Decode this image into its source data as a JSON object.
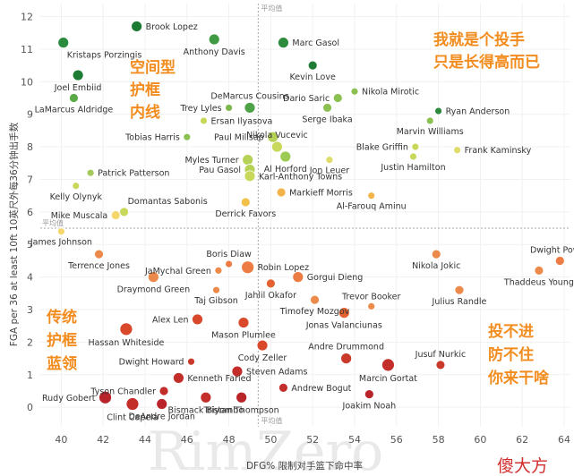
{
  "chart_data": {
    "type": "scatter",
    "xlabel": "DFG% 限制对手篮下命中率",
    "ylabel": "FGA per 36 at least 10ft  10英尺外每36分钟出手数",
    "xlim": [
      39,
      64.3
    ],
    "ylim": [
      -0.6,
      12.4
    ],
    "x_ticks": [
      40,
      42,
      44,
      46,
      48,
      50,
      52,
      54,
      56,
      58,
      60,
      62,
      64
    ],
    "y_ticks": [
      0,
      1,
      2,
      3,
      4,
      5,
      6,
      7,
      8,
      9,
      10,
      11,
      12
    ],
    "average": {
      "x": 49.4,
      "y": 5.5,
      "x_label": "平均值",
      "y_label": "平均值"
    },
    "points": [
      {
        "name": "Brook Lopez",
        "x": 43.6,
        "y": 11.7,
        "color": "#1e7b34",
        "r": 6,
        "anchor": "end-right"
      },
      {
        "name": "Kristaps Porzingis",
        "x": 40.1,
        "y": 11.2,
        "color": "#2a8a3e",
        "r": 6,
        "anchor": "below-right"
      },
      {
        "name": "Anthony Davis",
        "x": 47.3,
        "y": 11.3,
        "color": "#3f9a44",
        "r": 6,
        "anchor": "below"
      },
      {
        "name": "Marc Gasol",
        "x": 50.6,
        "y": 11.2,
        "color": "#2e8b3e",
        "r": 6,
        "anchor": "right"
      },
      {
        "name": "Kevin Love",
        "x": 52.0,
        "y": 10.5,
        "color": "#1e7b34",
        "r": 5,
        "anchor": "below"
      },
      {
        "name": "Joel Embiid",
        "x": 40.8,
        "y": 10.2,
        "color": "#1e7b34",
        "r": 6,
        "anchor": "below"
      },
      {
        "name": "LaMarcus Aldridge",
        "x": 40.6,
        "y": 9.5,
        "color": "#5aaa48",
        "r": 5,
        "anchor": "below"
      },
      {
        "name": "DeMarcus Cousins",
        "x": 49.0,
        "y": 9.2,
        "color": "#4ea346",
        "r": 6,
        "anchor": "above"
      },
      {
        "name": "Trey Lyles",
        "x": 48.0,
        "y": 9.2,
        "color": "#7db84f",
        "r": 4,
        "anchor": "left"
      },
      {
        "name": "Ersan Ilyasova",
        "x": 46.8,
        "y": 8.8,
        "color": "#c8d85a",
        "r": 4,
        "anchor": "right"
      },
      {
        "name": "Dario Saric",
        "x": 53.2,
        "y": 9.5,
        "color": "#8cc152",
        "r": 5,
        "anchor": "left"
      },
      {
        "name": "Nikola Mirotic",
        "x": 54.0,
        "y": 9.7,
        "color": "#8cc152",
        "r": 4,
        "anchor": "right"
      },
      {
        "name": "Serge Ibaka",
        "x": 52.7,
        "y": 9.2,
        "color": "#8cc152",
        "r": 5,
        "anchor": "below"
      },
      {
        "name": "Ryan Anderson",
        "x": 58.0,
        "y": 9.1,
        "color": "#2e8b3e",
        "r": 4,
        "anchor": "right"
      },
      {
        "name": "Marvin Williams",
        "x": 57.6,
        "y": 8.8,
        "color": "#8cc152",
        "r": 4,
        "anchor": "below"
      },
      {
        "name": "Tobias Harris",
        "x": 46.0,
        "y": 8.3,
        "color": "#8cc152",
        "r": 4,
        "anchor": "left"
      },
      {
        "name": "Paul Millsap",
        "x": 50.1,
        "y": 8.3,
        "color": "#b5d257",
        "r": 6,
        "anchor": "left"
      },
      {
        "name": "Nikola Vucevic",
        "x": 50.3,
        "y": 8.0,
        "color": "#c8d85a",
        "r": 6,
        "anchor": "above"
      },
      {
        "name": "Blake Griffin",
        "x": 56.9,
        "y": 8.0,
        "color": "#c8d85a",
        "r": 4,
        "anchor": "left"
      },
      {
        "name": "Frank Kaminsky",
        "x": 58.9,
        "y": 7.9,
        "color": "#e0dd6c",
        "r": 4,
        "anchor": "right"
      },
      {
        "name": "Myles Turner",
        "x": 48.9,
        "y": 7.6,
        "color": "#b5d257",
        "r": 6,
        "anchor": "left"
      },
      {
        "name": "Al Horford",
        "x": 50.7,
        "y": 7.7,
        "color": "#9ccb53",
        "r": 6,
        "anchor": "below"
      },
      {
        "name": "Jon Leuer",
        "x": 52.8,
        "y": 7.6,
        "color": "#e0dd6c",
        "r": 4,
        "anchor": "below"
      },
      {
        "name": "Justin Hamilton",
        "x": 56.8,
        "y": 7.7,
        "color": "#c8d85a",
        "r": 4,
        "anchor": "below"
      },
      {
        "name": "Pau Gasol",
        "x": 49.0,
        "y": 7.3,
        "color": "#b5d257",
        "r": 6,
        "anchor": "left"
      },
      {
        "name": "Karl-Anthony Towns",
        "x": 49.0,
        "y": 7.1,
        "color": "#c8d85a",
        "r": 6,
        "anchor": "right"
      },
      {
        "name": "Patrick Patterson",
        "x": 41.4,
        "y": 7.2,
        "color": "#a5c95a",
        "r": 4,
        "anchor": "right"
      },
      {
        "name": "Kelly Olynyk",
        "x": 40.7,
        "y": 6.8,
        "color": "#c8d85a",
        "r": 4,
        "anchor": "below"
      },
      {
        "name": "Markieff Morris",
        "x": 50.5,
        "y": 6.6,
        "color": "#f2b44a",
        "r": 5,
        "anchor": "right"
      },
      {
        "name": "Al-Farouq Aminu",
        "x": 54.8,
        "y": 6.5,
        "color": "#f2b44a",
        "r": 4,
        "anchor": "below"
      },
      {
        "name": "Domantas Sabonis",
        "x": 43.0,
        "y": 6.0,
        "color": "#c8d85a",
        "r": 5,
        "anchor": "above-right"
      },
      {
        "name": "Mike Muscala",
        "x": 42.6,
        "y": 5.9,
        "color": "#f5d76e",
        "r": 5,
        "anchor": "left"
      },
      {
        "name": "Derrick Favors",
        "x": 48.8,
        "y": 6.3,
        "color": "#f2c14a",
        "r": 5,
        "anchor": "below"
      },
      {
        "name": "James Johnson",
        "x": 40.0,
        "y": 5.4,
        "color": "#f5d76e",
        "r": 4,
        "anchor": "below"
      },
      {
        "name": "Terrence Jones",
        "x": 41.8,
        "y": 4.7,
        "color": "#ec8a4b",
        "r": 5,
        "anchor": "below"
      },
      {
        "name": "Boris Diaw",
        "x": 48.0,
        "y": 4.4,
        "color": "#ec7c44",
        "r": 4,
        "anchor": "above"
      },
      {
        "name": "JaMychal Green",
        "x": 47.5,
        "y": 4.2,
        "color": "#ec8a4b",
        "r": 4,
        "anchor": "left"
      },
      {
        "name": "Robin Lopez",
        "x": 48.9,
        "y": 4.3,
        "color": "#ec7c44",
        "r": 7,
        "anchor": "right"
      },
      {
        "name": "Nikola Jokic",
        "x": 57.9,
        "y": 4.7,
        "color": "#ec8a4b",
        "r": 5,
        "anchor": "below"
      },
      {
        "name": "Dwight Powell",
        "x": 63.8,
        "y": 4.5,
        "color": "#ec7c44",
        "r": 5,
        "anchor": "above"
      },
      {
        "name": "Thaddeus Young",
        "x": 62.8,
        "y": 4.2,
        "color": "#ec8a4b",
        "r": 5,
        "anchor": "below"
      },
      {
        "name": "Draymond Green",
        "x": 44.4,
        "y": 4.0,
        "color": "#ec8a4b",
        "r": 6,
        "anchor": "below"
      },
      {
        "name": "Gorgui Dieng",
        "x": 51.3,
        "y": 4.0,
        "color": "#ec7c44",
        "r": 6,
        "anchor": "right"
      },
      {
        "name": "Taj Gibson",
        "x": 47.4,
        "y": 3.6,
        "color": "#ec8a4b",
        "r": 4,
        "anchor": "below"
      },
      {
        "name": "Jahlil Okafor",
        "x": 50.0,
        "y": 3.8,
        "color": "#e4622f",
        "r": 5,
        "anchor": "below"
      },
      {
        "name": "Julius Randle",
        "x": 59.0,
        "y": 3.6,
        "color": "#ec8a4b",
        "r": 5,
        "anchor": "below"
      },
      {
        "name": "Trevor Booker",
        "x": 54.8,
        "y": 3.1,
        "color": "#ec8a4b",
        "r": 4,
        "anchor": "above"
      },
      {
        "name": "Timofey Mozgov",
        "x": 52.1,
        "y": 3.3,
        "color": "#ec8a4b",
        "r": 5,
        "anchor": "below"
      },
      {
        "name": "Jonas Valanciunas",
        "x": 53.5,
        "y": 2.9,
        "color": "#e4622f",
        "r": 6,
        "anchor": "below"
      },
      {
        "name": "Alex Len",
        "x": 46.5,
        "y": 2.7,
        "color": "#d9482a",
        "r": 6,
        "anchor": "left"
      },
      {
        "name": "Hassan Whiteside",
        "x": 43.1,
        "y": 2.4,
        "color": "#d9482a",
        "r": 7,
        "anchor": "below"
      },
      {
        "name": "Mason Plumlee",
        "x": 48.7,
        "y": 2.6,
        "color": "#d9482a",
        "r": 6,
        "anchor": "below"
      },
      {
        "name": "Andre Drummond",
        "x": 53.6,
        "y": 1.5,
        "color": "#c93a2b",
        "r": 6,
        "anchor": "above"
      },
      {
        "name": "Jusuf Nurkic",
        "x": 58.1,
        "y": 1.3,
        "color": "#c93a2b",
        "r": 5,
        "anchor": "above"
      },
      {
        "name": "Cody Zeller",
        "x": 49.6,
        "y": 1.9,
        "color": "#d9482a",
        "r": 6,
        "anchor": "below"
      },
      {
        "name": "Marcin Gortat",
        "x": 55.6,
        "y": 1.3,
        "color": "#c42e2a",
        "r": 7,
        "anchor": "below"
      },
      {
        "name": "Dwight Howard",
        "x": 46.2,
        "y": 1.4,
        "color": "#c93a2b",
        "r": 4,
        "anchor": "left"
      },
      {
        "name": "Steven Adams",
        "x": 48.4,
        "y": 1.1,
        "color": "#c42e2a",
        "r": 6,
        "anchor": "right"
      },
      {
        "name": "Kenneth Faried",
        "x": 45.6,
        "y": 0.9,
        "color": "#c42e2a",
        "r": 6,
        "anchor": "right"
      },
      {
        "name": "Tyson Chandler",
        "x": 44.9,
        "y": 0.5,
        "color": "#c42e2a",
        "r": 5,
        "anchor": "left"
      },
      {
        "name": "Andrew Bogut",
        "x": 50.6,
        "y": 0.6,
        "color": "#c42e2a",
        "r": 5,
        "anchor": "right"
      },
      {
        "name": "Rudy Gobert",
        "x": 42.1,
        "y": 0.3,
        "color": "#b8242a",
        "r": 7,
        "anchor": "left"
      },
      {
        "name": "Clint Capela",
        "x": 43.4,
        "y": 0.1,
        "color": "#c42e2a",
        "r": 7,
        "anchor": "below"
      },
      {
        "name": "DeAndre Jordan",
        "x": 44.8,
        "y": 0.1,
        "color": "#b8242a",
        "r": 6,
        "anchor": "below"
      },
      {
        "name": "Bismack Biyombo",
        "x": 46.9,
        "y": 0.3,
        "color": "#c42e2a",
        "r": 6,
        "anchor": "below"
      },
      {
        "name": "Tristan Thompson",
        "x": 48.6,
        "y": 0.3,
        "color": "#b8242a",
        "r": 6,
        "anchor": "below"
      },
      {
        "name": "Joakim Noah",
        "x": 54.7,
        "y": 0.4,
        "color": "#b8242a",
        "r": 5,
        "anchor": "below"
      }
    ],
    "annotations": {
      "top_left": [
        "空间型",
        "护框",
        "内线"
      ],
      "top_right": [
        "我就是个投手",
        "只是长得高而已"
      ],
      "bottom_left": [
        "传统",
        "护框",
        "蓝领"
      ],
      "bottom_right": [
        "投不进",
        "防不住",
        "你来干啥"
      ]
    },
    "watermark": "RimZero",
    "logo": "傻大方"
  }
}
